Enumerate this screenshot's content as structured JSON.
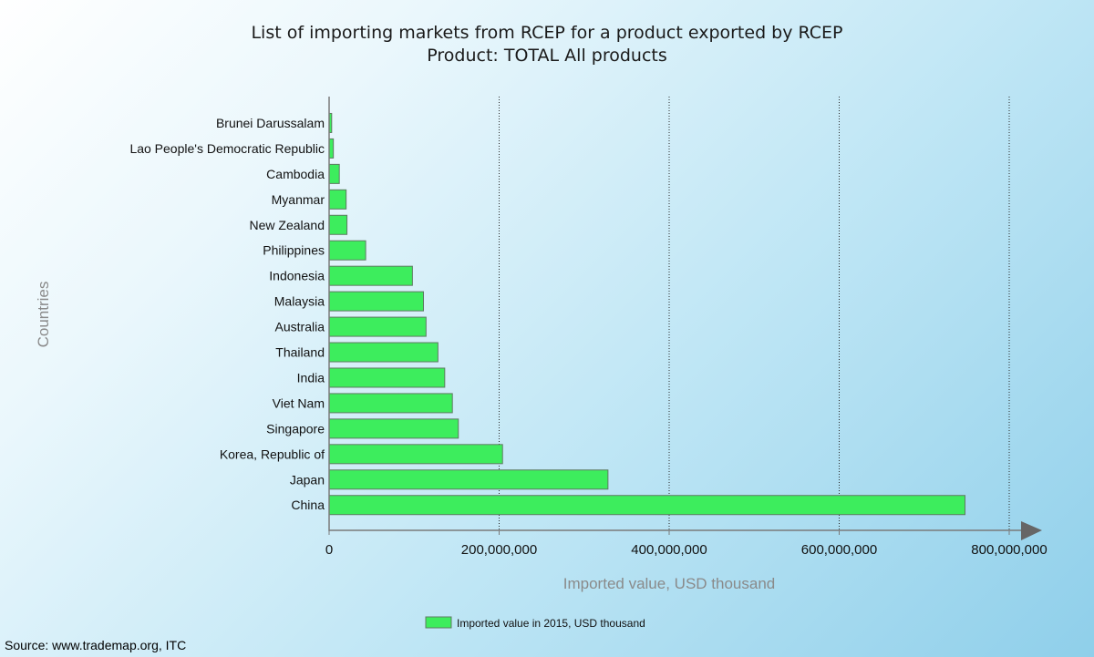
{
  "chart_data": {
    "type": "bar",
    "orientation": "horizontal",
    "title": "List of importing markets from RCEP for a product exported by RCEP",
    "subtitle": "Product: TOTAL All products",
    "xlabel": "Imported value, USD thousand",
    "ylabel": "Countries",
    "xlim": [
      0,
      800000000
    ],
    "x_ticks": [
      0,
      200000000,
      400000000,
      600000000,
      800000000
    ],
    "x_tick_labels": [
      "0",
      "200,000,000",
      "400,000,000",
      "600,000,000",
      "800,000,000"
    ],
    "grid": {
      "vertical": true,
      "horizontal": false,
      "style": "dotted"
    },
    "legend_position": "bottom",
    "categories": [
      "Brunei Darussalam",
      "Lao People's Democratic Republic",
      "Cambodia",
      "Myanmar",
      "New Zealand",
      "Philippines",
      "Indonesia",
      "Malaysia",
      "Australia",
      "Thailand",
      "India",
      "Viet Nam",
      "Singapore",
      "Korea, Republic of",
      "Japan",
      "China"
    ],
    "series": [
      {
        "name": "Imported value in 2015, USD thousand",
        "color": "#3ded5d",
        "values": [
          3000000,
          5000000,
          12000000,
          20000000,
          21000000,
          43000000,
          98000000,
          111000000,
          114000000,
          128000000,
          136000000,
          145000000,
          152000000,
          204000000,
          328000000,
          748000000
        ]
      }
    ]
  },
  "source_note": "Source: www.trademap.org, ITC",
  "colors": {
    "bar_fill": "#3ded5d",
    "bar_stroke": "#5e7a62",
    "axis": "#7a7a7a",
    "grid": "#2a2a2a"
  }
}
